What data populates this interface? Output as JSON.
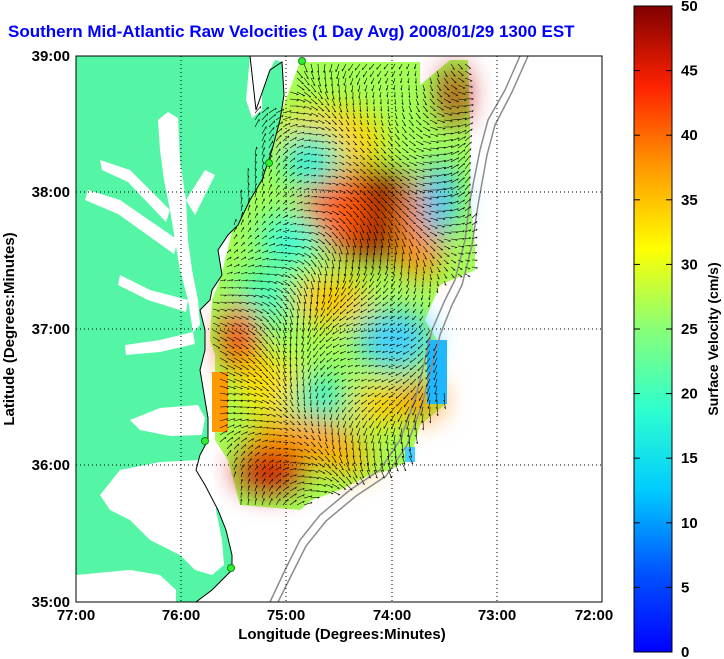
{
  "title": "Southern Mid-Atlantic Raw Velocities (1 Day Avg) 2008/01/29 1300 EST",
  "axes": {
    "xlabel": "Longitude (Degrees:Minutes)",
    "ylabel": "Latitude (Degrees:Minutes)",
    "x_ticks": [
      "77:00",
      "76:00",
      "75:00",
      "74:00",
      "73:00",
      "72:00"
    ],
    "y_ticks": [
      "39:00",
      "38:00",
      "37:00",
      "36:00",
      "35:00"
    ],
    "xlim": [
      -77,
      -72
    ],
    "ylim": [
      35,
      39
    ],
    "grid": "dotted"
  },
  "colorbar": {
    "label": "Surface Velocity (cm/s)",
    "ticks": [
      "50",
      "45",
      "40",
      "35",
      "30",
      "25",
      "20",
      "15",
      "10",
      "5",
      "0"
    ],
    "range": [
      0,
      50
    ],
    "colormap": "jet"
  },
  "colors": {
    "title": "#0000ff",
    "land": "#55f5a6",
    "ocean": "#ffffff",
    "contour": "#8c8c8c",
    "site_marker": "#33ee33"
  },
  "sites": [
    {
      "lon": -74.85,
      "lat": 39.0
    },
    {
      "lon": -75.09,
      "lat": 38.2
    },
    {
      "lon": -75.7,
      "lat": 36.2
    },
    {
      "lon": -75.52,
      "lat": 35.25
    }
  ]
}
